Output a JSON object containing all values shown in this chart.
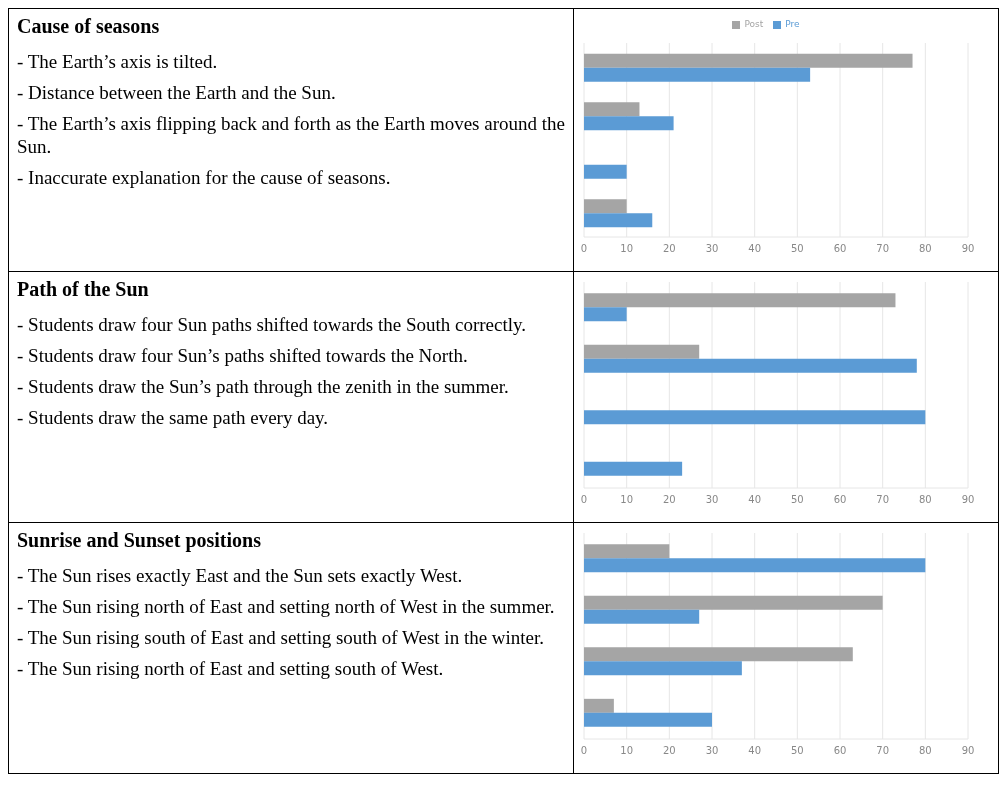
{
  "chart_data": [
    {
      "type": "other",
      "title": "Cause of seasons",
      "annotations": [
        "- The Earth’s axis is tilted.",
        "- Distance between the Earth and the Sun.",
        "- The Earth’s axis flipping back and forth as the Earth moves around the Sun.",
        "-  Inaccurate explanation for the cause of seasons."
      ]
    },
    {
      "type": "bar",
      "orientation": "horizontal",
      "categories": [
        null,
        null,
        null,
        null
      ],
      "series": [
        {
          "name": "Post",
          "color": "#a5a5a5",
          "values": [
            77,
            13,
            null,
            10
          ]
        },
        {
          "name": "Pre",
          "color": "#5b9bd5",
          "values": [
            53,
            21,
            10,
            16
          ]
        }
      ],
      "xlim": [
        0,
        90
      ],
      "xticks": [
        0,
        10,
        20,
        30,
        40,
        50,
        60,
        70,
        80,
        90
      ],
      "grid": "x",
      "legend": "top"
    },
    {
      "type": "other",
      "title": "Path of the Sun",
      "annotations": [
        "- Students draw four Sun paths shifted towards the South correctly.",
        "- Students draw four Sun’s paths shifted towards the North.",
        "- Students draw the Sun’s path through the zenith in the summer.",
        "- Students draw the same path every day."
      ]
    },
    {
      "type": "bar",
      "orientation": "horizontal",
      "categories": [
        null,
        null,
        null,
        null
      ],
      "series": [
        {
          "color": "#a5a5a5",
          "values": [
            73,
            27,
            null,
            null
          ]
        },
        {
          "color": "#5b9bd5",
          "values": [
            10,
            78,
            80,
            23
          ]
        }
      ],
      "xlim": [
        0,
        90
      ],
      "xticks": [
        0,
        10,
        20,
        30,
        40,
        50,
        60,
        70,
        80,
        90
      ],
      "grid": "x"
    },
    {
      "type": "other",
      "title": "Sunrise and Sunset positions",
      "annotations": [
        "- The Sun rises exactly East and the Sun sets exactly West.",
        "- The Sun rising north of East and setting north of West in the summer.",
        "-  The Sun rising south of East and setting south of West in the winter.",
        "- The Sun rising north of East and setting south of West."
      ]
    },
    {
      "type": "bar",
      "orientation": "horizontal",
      "categories": [
        null,
        null,
        null,
        null
      ],
      "series": [
        {
          "color": "#a5a5a5",
          "values": [
            20,
            70,
            63,
            7
          ]
        },
        {
          "color": "#5b9bd5",
          "values": [
            80,
            27,
            37,
            30
          ]
        }
      ],
      "xlim": [
        0,
        90
      ],
      "xticks": [
        0,
        10,
        20,
        30,
        40,
        50,
        60,
        70,
        80,
        90
      ],
      "grid": "x"
    }
  ]
}
